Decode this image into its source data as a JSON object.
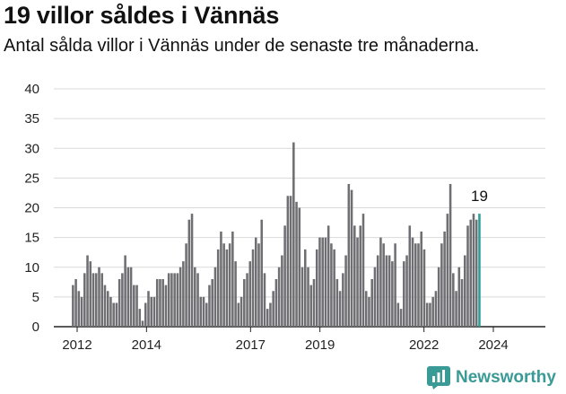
{
  "chart_data": {
    "type": "bar",
    "title": "19 villor såldes i Vännäs",
    "subtitle": "Antal sålda villor i Vännäs under de senaste tre månaderna.",
    "xlabel": "",
    "ylabel": "",
    "ylim": [
      0,
      40
    ],
    "yticks": [
      "0",
      "5",
      "10",
      "15",
      "20",
      "25",
      "30",
      "35",
      "40"
    ],
    "xtick_labels": [
      "2012",
      "2014",
      "2017",
      "2019",
      "2022",
      "2024"
    ],
    "xtick_years": [
      2012,
      2014,
      2017,
      2019,
      2022,
      2024
    ],
    "x_start": 2011.88,
    "x_step": 0.0837,
    "grid": true,
    "bar_color": "#6e6e73",
    "highlight_color": "#2a9d96",
    "last_label": "19",
    "values": [
      7,
      8,
      6,
      5,
      9,
      12,
      11,
      9,
      9,
      10,
      9,
      7,
      6,
      5,
      4,
      4,
      8,
      9,
      12,
      10,
      10,
      7,
      7,
      3,
      1,
      4,
      6,
      5,
      5,
      8,
      8,
      8,
      7,
      9,
      9,
      9,
      9,
      10,
      11,
      14,
      18,
      19,
      10,
      9,
      5,
      5,
      4,
      7,
      8,
      10,
      13,
      16,
      14,
      13,
      14,
      16,
      11,
      4,
      5,
      8,
      9,
      11,
      13,
      15,
      14,
      18,
      9,
      3,
      4,
      6,
      8,
      10,
      12,
      17,
      22,
      22,
      31,
      21,
      20,
      10,
      13,
      10,
      7,
      8,
      13,
      15,
      15,
      15,
      17,
      14,
      13,
      8,
      6,
      9,
      12,
      24,
      23,
      17,
      15,
      17,
      19,
      6,
      5,
      8,
      10,
      12,
      15,
      14,
      12,
      12,
      11,
      14,
      4,
      3,
      11,
      12,
      17,
      15,
      14,
      14,
      16,
      13,
      4,
      4,
      5,
      6,
      10,
      14,
      16,
      19,
      24,
      9,
      6,
      10,
      8,
      12,
      17,
      18,
      19,
      18,
      19
    ]
  },
  "brand": {
    "name": "Newsworthy",
    "logo_icon": "newsworthy-logo-icon",
    "logo_color": "#3a9a95"
  }
}
